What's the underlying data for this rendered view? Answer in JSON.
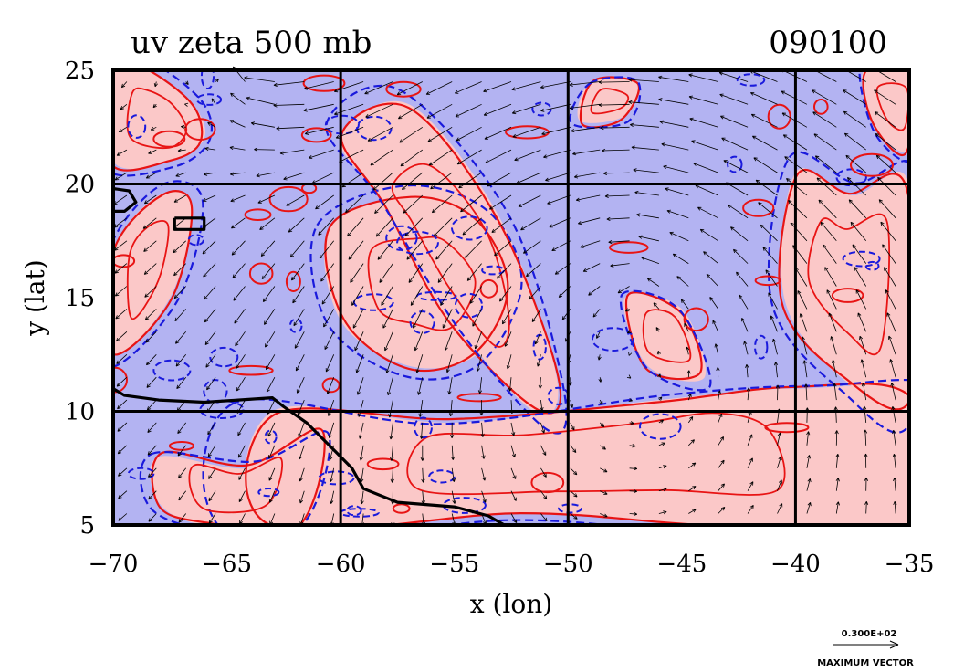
{
  "chart_data": {
    "type": "contour-vector-map",
    "title_left": "uv zeta 500 mb",
    "title_right": "090100",
    "xlabel": "x (lon)",
    "ylabel": "y (lat)",
    "xlim": [
      -70,
      -35
    ],
    "ylim": [
      5,
      25
    ],
    "xticks": [
      -70,
      -65,
      -60,
      -55,
      -50,
      -45,
      -40,
      -35
    ],
    "yticks": [
      5,
      10,
      15,
      20,
      25
    ],
    "xtick_labels": [
      "−70",
      "−65",
      "−60",
      "−55",
      "−50",
      "−45",
      "−40",
      "−35"
    ],
    "ytick_labels": [
      "5",
      "10",
      "15",
      "20",
      "25"
    ],
    "grid_lon": [
      -60,
      -50,
      -40
    ],
    "grid_lat": [
      10,
      20
    ],
    "legend_value": "0.300E+02",
    "legend_label": "MAXIMUM VECTOR",
    "colors": {
      "negative_fill": "#b3b3f2",
      "positive_fill": "#fbc8c8",
      "negative_contour": "#1a1adc",
      "positive_contour": "#e81414",
      "coastline": "#000000",
      "vectors": "#000000"
    },
    "positive_regions": [
      {
        "name": "nw-corner",
        "lon": [
          -70,
          -68.5,
          -66.5,
          -66,
          -67.5,
          -70
        ],
        "lat": [
          25,
          25,
          23.5,
          22,
          21,
          21
        ]
      },
      {
        "name": "west-band",
        "lon": [
          -70,
          -68,
          -66.5,
          -67.5,
          -70
        ],
        "lat": [
          17,
          19.5,
          19,
          15,
          12.5
        ]
      },
      {
        "name": "central-vortex",
        "lon": [
          -60.5,
          -57,
          -54,
          -52.5,
          -54,
          -57,
          -60
        ],
        "lat": [
          18,
          19.5,
          18.5,
          15.5,
          12.5,
          12,
          14
        ]
      },
      {
        "name": "diagonal-band",
        "lon": [
          -60,
          -57,
          -53,
          -50.5,
          -51.5,
          -55,
          -58
        ],
        "lat": [
          22,
          23.5,
          18.5,
          11.5,
          10,
          14,
          19
        ]
      },
      {
        "name": "southern-band",
        "lon": [
          -63,
          -55,
          -46,
          -40,
          -35,
          -35,
          -44,
          -52,
          -63
        ],
        "lat": [
          10,
          9.5,
          10.5,
          11,
          10.5,
          5,
          5,
          5.5,
          5
        ]
      },
      {
        "name": "eastern-region",
        "lon": [
          -40,
          -37.5,
          -35,
          -35,
          -38,
          -40.5
        ],
        "lat": [
          20.5,
          19.5,
          20,
          10.5,
          11.5,
          15
        ]
      },
      {
        "name": "ne-corner",
        "lon": [
          -37,
          -35,
          -35,
          -36.5
        ],
        "lat": [
          25,
          25,
          21.5,
          22.5
        ]
      },
      {
        "name": "north-ridge",
        "lon": [
          -49,
          -47,
          -47.5,
          -49.5
        ],
        "lat": [
          24.5,
          24.5,
          23,
          22.8
        ]
      },
      {
        "name": "mid-trough",
        "lon": [
          -47.5,
          -45,
          -44,
          -46.5
        ],
        "lat": [
          15,
          14.5,
          11.5,
          12
        ]
      },
      {
        "name": "sw-corner",
        "lon": [
          -68,
          -64,
          -61,
          -62,
          -66,
          -68
        ],
        "lat": [
          8,
          7.5,
          9,
          5,
          5,
          6
        ]
      }
    ],
    "coastlines": [
      {
        "lon": [
          -70,
          -69.5,
          -68,
          -66,
          -64.5,
          -63,
          -62.5,
          -61.5,
          -60.5,
          -59.5,
          -59,
          -57.5,
          -55,
          -53.5,
          -52.8
        ],
        "lat": [
          11,
          10.7,
          10.5,
          10.4,
          10.5,
          10.6,
          10.2,
          9.5,
          8.5,
          7.5,
          6.6,
          6.0,
          5.8,
          5.4,
          5
        ]
      },
      {
        "lon": [
          -70,
          -69.3,
          -69.0,
          -69.5,
          -70
        ],
        "lat": [
          19.8,
          19.7,
          19.2,
          18.8,
          18.8
        ]
      },
      {
        "lon": [
          -67.3,
          -66.0,
          -66.0,
          -67.3,
          -67.3
        ],
        "lat": [
          18.5,
          18.5,
          18.0,
          18.0,
          18.5
        ]
      }
    ],
    "wind_field": {
      "anticyclone_center": [
        -47,
        15.5
      ],
      "inflow_source": [
        -64,
        25.5
      ],
      "vector_max": 30
    }
  }
}
